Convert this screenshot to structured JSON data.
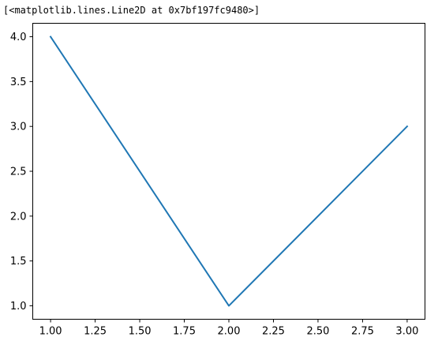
{
  "output": {
    "repr_text": "[<matplotlib.lines.Line2D at 0x7bf197fc9480>]"
  },
  "chart_data": {
    "type": "line",
    "title": "",
    "xlabel": "",
    "ylabel": "",
    "x": [
      1.0,
      2.0,
      3.0
    ],
    "series": [
      {
        "values": [
          4.0,
          1.0,
          3.0
        ],
        "color": "#1f77b4"
      }
    ],
    "xlim": [
      0.9,
      3.1
    ],
    "ylim": [
      0.85,
      4.15
    ],
    "x_ticks": [
      "1.00",
      "1.25",
      "1.50",
      "1.75",
      "2.00",
      "2.25",
      "2.50",
      "2.75",
      "3.00"
    ],
    "y_ticks": [
      "1.0",
      "1.5",
      "2.0",
      "2.5",
      "3.0",
      "3.5",
      "4.0"
    ],
    "grid": false,
    "legend": "none"
  }
}
